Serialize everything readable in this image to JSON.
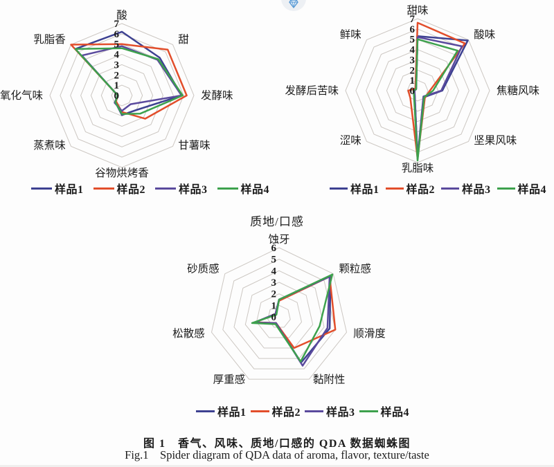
{
  "figure": {
    "caption_cn": "图 1　香气、风味、质地/口感的 QDA 数据蜘蛛图",
    "caption_en": "Fig.1    Spider diagram of QDA data of aroma, flavor, texture/taste"
  },
  "badge": {
    "icon": "diamond-icon"
  },
  "colors": {
    "grid": "#ccc7c2",
    "text": "#1c1c1c"
  },
  "samples": [
    {
      "label": "样品1",
      "color": "#3d4191"
    },
    {
      "label": "样品2",
      "color": "#e24e2b"
    },
    {
      "label": "样品3",
      "color": "#5a4a9d"
    },
    {
      "label": "样品4",
      "color": "#3da14d"
    }
  ],
  "chart_data": [
    {
      "type": "radar",
      "title": "",
      "position": "top-left",
      "max": 7,
      "tick_labels": [
        7,
        6,
        5,
        4,
        3,
        2,
        1,
        0
      ],
      "categories": [
        "酸",
        "甜",
        "发酵味",
        "甘薯味",
        "谷物烘烤香",
        "蒸煮味",
        "氧化气味",
        "乳脂香"
      ],
      "series": [
        {
          "name": "样品1",
          "values": [
            6.2,
            5.2,
            5.8,
            2.0,
            1.9,
            0.9,
            0.4,
            6.4
          ]
        },
        {
          "name": "样品2",
          "values": [
            5.0,
            6.3,
            6.3,
            3.2,
            1.6,
            0.8,
            0.4,
            7.0
          ]
        },
        {
          "name": "样品3",
          "values": [
            4.8,
            4.9,
            5.8,
            1.2,
            1.5,
            1.0,
            0.4,
            5.5
          ]
        },
        {
          "name": "样品4",
          "values": [
            4.6,
            5.0,
            5.9,
            2.5,
            1.8,
            0.9,
            0.4,
            6.4
          ]
        }
      ],
      "legend": [
        "样品1",
        "样品2",
        "样品3",
        "样品4"
      ],
      "legend_position": "bottom"
    },
    {
      "type": "radar",
      "title": "",
      "position": "top-right",
      "max": 7,
      "tick_labels": [
        7,
        6,
        5,
        4,
        3,
        2,
        1,
        0
      ],
      "categories": [
        "甜味",
        "酸味",
        "焦糖风味",
        "坚果风味",
        "乳脂味",
        "涩味",
        "发酵后苦味",
        "鲜味"
      ],
      "series": [
        {
          "name": "样品1",
          "values": [
            5.3,
            6.9,
            2.4,
            0.9,
            6.6,
            0.4,
            0.3,
            0.2
          ]
        },
        {
          "name": "样品2",
          "values": [
            6.6,
            6.5,
            1.2,
            1.0,
            6.6,
            1.0,
            0.9,
            0.3
          ]
        },
        {
          "name": "样品3",
          "values": [
            5.2,
            6.1,
            2.3,
            0.8,
            6.5,
            0.4,
            0.3,
            0.2
          ]
        },
        {
          "name": "样品4",
          "values": [
            5.0,
            5.5,
            1.5,
            0.9,
            6.8,
            0.5,
            0.4,
            0.2
          ]
        }
      ],
      "legend": [
        "样品1",
        "样品2",
        "样品3",
        "样品4"
      ],
      "legend_position": "bottom"
    },
    {
      "type": "radar",
      "title": "质地/口感",
      "position": "bottom-center",
      "max": 6,
      "tick_labels": [
        6,
        5,
        4,
        3,
        2,
        1,
        0
      ],
      "categories": [
        "蚀牙",
        "颗粒感",
        "顺滑度",
        "黏附性",
        "厚重感",
        "松散感",
        "砂质感"
      ],
      "series": [
        {
          "name": "样品1",
          "values": [
            1.5,
            5.7,
            4.5,
            4.4,
            0.6,
            2.2,
            0.4
          ]
        },
        {
          "name": "样品2",
          "values": [
            1.4,
            5.6,
            5.0,
            3.0,
            0.6,
            2.1,
            0.4
          ]
        },
        {
          "name": "样品3",
          "values": [
            1.5,
            5.6,
            4.3,
            4.7,
            0.6,
            2.2,
            0.4
          ]
        },
        {
          "name": "样品4",
          "values": [
            1.5,
            5.9,
            3.6,
            4.3,
            0.7,
            2.4,
            0.3
          ]
        }
      ],
      "legend": [
        "样品1",
        "样品2",
        "样品3",
        "样品4"
      ],
      "legend_position": "bottom"
    }
  ]
}
